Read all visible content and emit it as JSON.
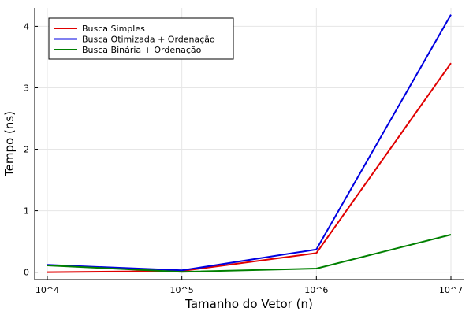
{
  "chart_data": {
    "type": "line",
    "xlabel": "Tamanho do Vetor (n)",
    "ylabel": "Tempo (ns)",
    "categories": [
      "10^4",
      "10^5",
      "10^6",
      "10^7"
    ],
    "yticks": [
      0,
      1,
      2,
      3,
      4
    ],
    "ylim": [
      -0.12,
      4.3
    ],
    "grid": true,
    "legend_position": "top-left",
    "series": [
      {
        "name": "Busca Simples",
        "color": "#e00000",
        "values": [
          0.0,
          0.02,
          0.31,
          3.4
        ]
      },
      {
        "name": "Busca Otimizada + Ordenação",
        "color": "#0000e0",
        "values": [
          0.12,
          0.03,
          0.37,
          4.19
        ]
      },
      {
        "name": "Busca Binária + Ordenação",
        "color": "#008000",
        "values": [
          0.11,
          0.005,
          0.06,
          0.61
        ]
      }
    ]
  }
}
